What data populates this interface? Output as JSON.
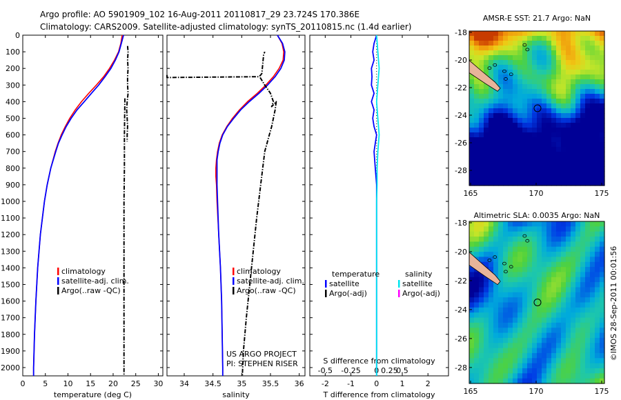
{
  "header": {
    "line1": "Argo profile: AO 5901909_102 16-Aug-2011 20110817_29 23.724S 170.386E",
    "line2": "Climatology: CARS2009. Satellite-adjusted climatology: synTS_20110815.nc (1.4d earlier)"
  },
  "credit": "©IMOS 28-Sep-2011 00:01:56",
  "colors": {
    "climatology": "#ff0000",
    "satellite": "#0000ff",
    "argo": "#000000",
    "sal_satellite": "#00e5ee",
    "sal_argo": "#ff00ff",
    "land": "#e8b49a"
  },
  "chart_data": [
    {
      "id": "temperature",
      "type": "line",
      "xlabel": "temperature (deg C)",
      "ylabel": "",
      "xlim": [
        0,
        31
      ],
      "ylim": [
        2050,
        0
      ],
      "xticks": [
        0,
        5,
        10,
        15,
        20,
        25,
        30
      ],
      "yticks": [
        0,
        100,
        200,
        300,
        400,
        500,
        600,
        700,
        800,
        900,
        1000,
        1100,
        1200,
        1300,
        1400,
        1500,
        1600,
        1700,
        1800,
        1900,
        2000
      ],
      "legend": [
        "climatology",
        "satellite-adj. clim.",
        "Argo(..raw -QC)"
      ],
      "series": [
        {
          "name": "climatology",
          "style": "red",
          "depth": [
            0,
            50,
            100,
            150,
            200,
            250,
            300,
            350,
            400,
            450,
            500,
            550,
            600,
            650,
            700,
            800,
            900,
            1000,
            1200,
            1400,
            1600,
            1800,
            2000,
            2050
          ],
          "values": [
            22.0,
            21.7,
            21.2,
            20.3,
            19.2,
            17.9,
            16.3,
            14.6,
            13.0,
            11.6,
            10.4,
            9.4,
            8.5,
            7.8,
            7.2,
            6.2,
            5.4,
            4.8,
            3.9,
            3.3,
            2.9,
            2.6,
            2.4,
            2.4
          ]
        },
        {
          "name": "satellite-adj. clim.",
          "style": "blue",
          "depth": [
            0,
            50,
            100,
            150,
            200,
            250,
            300,
            350,
            400,
            450,
            500,
            550,
            600,
            650,
            700,
            800,
            900,
            1000,
            1200,
            1400,
            1600,
            1800,
            2000,
            2050
          ],
          "values": [
            22.3,
            21.8,
            21.3,
            20.5,
            19.5,
            18.2,
            16.8,
            15.2,
            13.6,
            12.0,
            10.7,
            9.6,
            8.7,
            7.9,
            7.3,
            6.2,
            5.4,
            4.8,
            3.9,
            3.3,
            2.9,
            2.6,
            2.4,
            2.4
          ]
        },
        {
          "name": "Argo(..raw -QC)",
          "style": "dashdot",
          "depth": [
            65,
            100,
            150,
            200,
            250,
            300,
            350,
            400,
            450,
            500,
            550,
            600,
            640
          ],
          "values": [
            23.2,
            23.3,
            23.2,
            23.3,
            23.2,
            23.2,
            23.3,
            23.1,
            23.0,
            23.1,
            23.2,
            23.1,
            23.1
          ]
        },
        {
          "name": "Argo(..raw -QC)",
          "style": "dashdot",
          "depth": [
            380,
            600,
            800,
            1000,
            1200,
            1400,
            1600,
            1800,
            2000,
            2050
          ],
          "values": [
            22.6,
            22.5,
            22.5,
            22.4,
            22.4,
            22.4,
            22.4,
            22.4,
            22.4,
            22.4
          ]
        }
      ]
    },
    {
      "id": "salinity",
      "type": "line",
      "xlabel": "salinity",
      "ylabel": "",
      "xlim": [
        33.7,
        36.1
      ],
      "ylim": [
        2050,
        0
      ],
      "xticks": [
        34,
        34.5,
        35,
        35.5,
        36
      ],
      "legend": [
        "climatology",
        "satellite-adj. clim.",
        "Argo(..raw -QC)"
      ],
      "annotations": [
        "US ARGO PROJECT",
        "PI: STEPHEN RISER"
      ],
      "series": [
        {
          "name": "climatology",
          "style": "red",
          "depth": [
            0,
            50,
            100,
            150,
            200,
            250,
            300,
            350,
            400,
            450,
            500,
            550,
            600,
            650,
            700,
            750,
            800,
            850,
            900,
            1000,
            1200,
            1400,
            1600,
            1800,
            2000,
            2050
          ],
          "values": [
            35.62,
            35.7,
            35.73,
            35.72,
            35.65,
            35.55,
            35.42,
            35.27,
            35.1,
            34.96,
            34.84,
            34.74,
            34.66,
            34.61,
            34.58,
            34.56,
            34.55,
            34.55,
            34.56,
            34.57,
            34.6,
            34.63,
            34.65,
            34.66,
            34.67,
            34.67
          ]
        },
        {
          "name": "satellite-adj. clim.",
          "style": "blue",
          "depth": [
            0,
            50,
            100,
            150,
            200,
            250,
            300,
            350,
            400,
            450,
            500,
            550,
            600,
            650,
            700,
            750,
            800,
            850,
            900,
            1000,
            1200,
            1400,
            1600,
            1800,
            2000,
            2050
          ],
          "values": [
            35.62,
            35.71,
            35.75,
            35.74,
            35.68,
            35.58,
            35.45,
            35.3,
            35.13,
            34.98,
            34.86,
            34.75,
            34.67,
            34.62,
            34.59,
            34.57,
            34.57,
            34.57,
            34.57,
            34.58,
            34.6,
            34.63,
            34.65,
            34.66,
            34.67,
            34.67
          ]
        },
        {
          "name": "Argo(..raw -QC)",
          "style": "dashdot",
          "depth": [
            240,
            255,
            250,
            240,
            230,
            120,
            100
          ],
          "values": [
            33.7,
            33.7,
            35.3,
            35.33,
            35.35,
            35.38,
            35.4
          ]
        },
        {
          "name": "Argo(..raw -QC)",
          "style": "dashdot",
          "depth": [
            255,
            300,
            350,
            400,
            430,
            400,
            450,
            500,
            550,
            600,
            700,
            900,
            1100,
            1300,
            1500,
            1700,
            1900,
            2050
          ],
          "values": [
            35.32,
            35.4,
            35.5,
            35.55,
            35.52,
            35.6,
            35.58,
            35.55,
            35.52,
            35.48,
            35.4,
            35.33,
            35.26,
            35.2,
            35.14,
            35.08,
            35.03,
            35.01
          ]
        }
      ]
    },
    {
      "id": "difference",
      "type": "line",
      "xlabel": "T difference from climatology",
      "x2label": "S difference from climatology",
      "xlim": [
        -2.6,
        2.8
      ],
      "ylim": [
        2050,
        0
      ],
      "xticks": [
        -2,
        -1,
        0,
        1,
        2
      ],
      "x2ticks": [
        "-0.5",
        "-0.25",
        "0",
        "0.25",
        "0.5"
      ],
      "legend": [
        "temperature",
        "satellite",
        "Argo(-adj)",
        "salinity",
        "satellite",
        "Argo(-adj)"
      ],
      "series": [
        {
          "name": "satellite",
          "style": "blue",
          "depth": [
            0,
            50,
            100,
            150,
            200,
            250,
            300,
            350,
            400,
            450,
            500,
            550,
            600,
            650,
            700,
            800,
            900,
            1000,
            1200,
            1500,
            2050
          ],
          "values": [
            0.0,
            -0.1,
            -0.15,
            -0.1,
            -0.2,
            -0.18,
            -0.2,
            -0.1,
            -0.2,
            -0.1,
            -0.15,
            -0.1,
            0.0,
            -0.05,
            -0.1,
            -0.05,
            0.0,
            0.0,
            0.0,
            0.0,
            0.0
          ]
        },
        {
          "name": "satellite",
          "style": "cyan",
          "depth": [
            0,
            100,
            200,
            300,
            400,
            500,
            600,
            700,
            800,
            900,
            1000,
            1200,
            1500,
            2050
          ],
          "values": [
            0.0,
            0.05,
            0.1,
            0.05,
            0.0,
            0.05,
            0.1,
            0.05,
            0.02,
            0.02,
            0.0,
            0.0,
            0.0,
            0.0
          ]
        }
      ]
    }
  ],
  "maps": [
    {
      "title": "AMSR-E SST: 21.7 Argo: NaN",
      "yticks": [
        "-18",
        "-20",
        "-22",
        "-24",
        "-26",
        "-28"
      ],
      "xticks": [
        "165",
        "170",
        "175"
      ]
    },
    {
      "title": "Altimetric SLA: 0.0035 Argo: NaN",
      "yticks": [
        "-18",
        "-20",
        "-22",
        "-24",
        "-26",
        "-28"
      ],
      "xticks": [
        "165",
        "170",
        "175"
      ]
    }
  ]
}
